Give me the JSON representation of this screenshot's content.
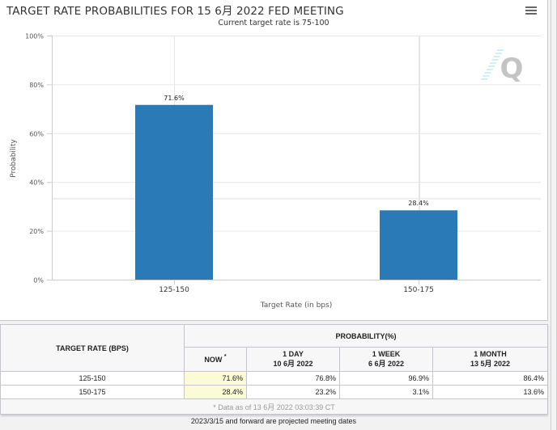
{
  "header": {
    "title": "TARGET RATE PROBABILITIES FOR 15 6月 2022 FED MEETING",
    "subtitle": "Current target rate is 75-100",
    "menu_icon": "hamburger-menu-icon",
    "watermark": "Q"
  },
  "colors": {
    "bar": "#2a7ab7",
    "now_cell": "#fbfbd6",
    "grid": "#e6e6e6"
  },
  "chart_data": {
    "type": "bar",
    "title": "TARGET RATE PROBABILITIES FOR 15 6月 2022 FED MEETING",
    "subtitle": "Current target rate is 75-100",
    "categories": [
      "125-150",
      "150-175"
    ],
    "values": [
      71.6,
      28.4
    ],
    "data_labels": [
      "71.6%",
      "28.4%"
    ],
    "xlabel": "Target Rate (in bps)",
    "ylabel": "Probability",
    "ylim": [
      0,
      100
    ],
    "yticks": [
      0,
      20,
      40,
      60,
      80,
      100
    ],
    "ytick_labels": [
      "0%",
      "20%",
      "40%",
      "60%",
      "80%",
      "100%"
    ],
    "grid": true,
    "legend": "none"
  },
  "table": {
    "col_target": "TARGET RATE (BPS)",
    "col_prob": "PROBABILITY(%)",
    "sub_cols": [
      {
        "line1": "NOW",
        "line2": "",
        "marker": "*"
      },
      {
        "line1": "1 DAY",
        "line2": "10 6月 2022"
      },
      {
        "line1": "1 WEEK",
        "line2": "6 6月 2022"
      },
      {
        "line1": "1 MONTH",
        "line2": "13 5月 2022"
      }
    ],
    "rows": [
      {
        "rate": "125-150",
        "now": "71.6%",
        "day": "76.8%",
        "week": "96.9%",
        "month": "86.4%"
      },
      {
        "rate": "150-175",
        "now": "28.4%",
        "day": "23.2%",
        "week": "3.1%",
        "month": "13.6%"
      }
    ],
    "footnote": "* Data as of 13 6月 2022 03:03:39 CT"
  },
  "note": "2023/3/15 and forward are projected meeting dates"
}
